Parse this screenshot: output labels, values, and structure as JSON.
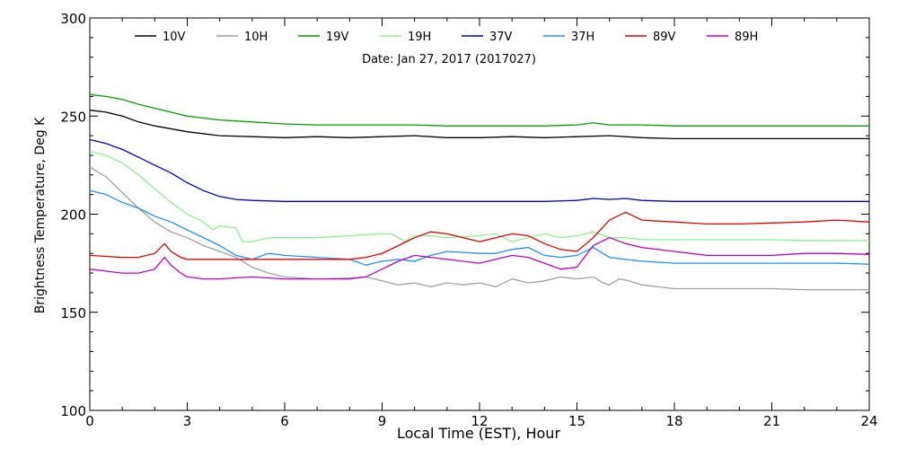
{
  "chart_data": {
    "type": "line",
    "title": "",
    "subtitle": "Date: Jan 27, 2017 (2017027)",
    "xlabel": "Local Time (EST), Hour",
    "ylabel": "Brightness Temperature, Deg K",
    "xlim": [
      0,
      24
    ],
    "ylim": [
      100,
      300
    ],
    "x_ticks": [
      "0",
      "3",
      "6",
      "9",
      "12",
      "15",
      "18",
      "21",
      "24"
    ],
    "y_ticks": [
      "100",
      "150",
      "200",
      "250",
      "300"
    ],
    "grid": false,
    "legend_position": "top",
    "series": [
      {
        "name": "10V",
        "color": "#000000",
        "points": [
          [
            0,
            253
          ],
          [
            0.5,
            252
          ],
          [
            1,
            250
          ],
          [
            1.5,
            247
          ],
          [
            2,
            245
          ],
          [
            3,
            242
          ],
          [
            4,
            240
          ],
          [
            5,
            239.5
          ],
          [
            6,
            239
          ],
          [
            7,
            239.5
          ],
          [
            8,
            239
          ],
          [
            9,
            239.5
          ],
          [
            10,
            240
          ],
          [
            11,
            239
          ],
          [
            12,
            239
          ],
          [
            13,
            239.5
          ],
          [
            14,
            239
          ],
          [
            15,
            239.5
          ],
          [
            16,
            240
          ],
          [
            17,
            239
          ],
          [
            18,
            238.5
          ],
          [
            19,
            238.5
          ],
          [
            20,
            238.5
          ],
          [
            21,
            238.5
          ],
          [
            22,
            238.5
          ],
          [
            23,
            238.5
          ],
          [
            24,
            238.5
          ]
        ]
      },
      {
        "name": "10H",
        "color": "#a0a0a0",
        "points": [
          [
            0,
            224
          ],
          [
            0.5,
            219
          ],
          [
            1,
            211
          ],
          [
            1.5,
            203
          ],
          [
            2,
            196
          ],
          [
            2.5,
            191
          ],
          [
            3,
            188
          ],
          [
            3.5,
            184
          ],
          [
            4,
            181
          ],
          [
            4.5,
            178
          ],
          [
            5,
            173
          ],
          [
            5.5,
            170
          ],
          [
            6,
            168
          ],
          [
            7,
            167
          ],
          [
            8,
            167.5
          ],
          [
            8.5,
            168
          ],
          [
            9,
            166
          ],
          [
            9.5,
            164
          ],
          [
            10,
            165
          ],
          [
            10.5,
            163
          ],
          [
            11,
            165
          ],
          [
            11.5,
            164
          ],
          [
            12,
            165
          ],
          [
            12.5,
            163
          ],
          [
            13,
            167
          ],
          [
            13.5,
            165
          ],
          [
            14,
            166
          ],
          [
            14.5,
            168
          ],
          [
            15,
            167
          ],
          [
            15.5,
            168
          ],
          [
            15.8,
            165
          ],
          [
            16,
            164
          ],
          [
            16.3,
            167
          ],
          [
            16.6,
            166
          ],
          [
            17,
            164
          ],
          [
            18,
            162
          ],
          [
            19,
            162
          ],
          [
            20,
            162
          ],
          [
            21,
            162
          ],
          [
            22,
            161.5
          ],
          [
            23,
            161.5
          ],
          [
            24,
            161.5
          ]
        ]
      },
      {
        "name": "19V",
        "color": "#00a000",
        "points": [
          [
            0,
            261
          ],
          [
            0.5,
            260
          ],
          [
            1,
            258.5
          ],
          [
            1.5,
            256
          ],
          [
            2,
            254
          ],
          [
            3,
            250
          ],
          [
            4,
            248
          ],
          [
            5,
            247
          ],
          [
            6,
            246
          ],
          [
            7,
            245.5
          ],
          [
            8,
            245.5
          ],
          [
            9,
            245.5
          ],
          [
            10,
            245.5
          ],
          [
            11,
            245
          ],
          [
            12,
            245
          ],
          [
            13,
            245
          ],
          [
            14,
            245
          ],
          [
            15,
            245.5
          ],
          [
            15.5,
            246.5
          ],
          [
            16,
            245.5
          ],
          [
            17,
            245.5
          ],
          [
            18,
            245
          ],
          [
            19,
            245
          ],
          [
            20,
            245
          ],
          [
            21,
            245
          ],
          [
            22,
            245
          ],
          [
            23,
            245
          ],
          [
            24,
            245
          ]
        ]
      },
      {
        "name": "19H",
        "color": "#90ee90",
        "points": [
          [
            0,
            232
          ],
          [
            0.5,
            230
          ],
          [
            1,
            226
          ],
          [
            1.5,
            220
          ],
          [
            2,
            213
          ],
          [
            2.5,
            206
          ],
          [
            3,
            200
          ],
          [
            3.5,
            196
          ],
          [
            3.8,
            192
          ],
          [
            4,
            194
          ],
          [
            4.5,
            193
          ],
          [
            4.7,
            186
          ],
          [
            5,
            186
          ],
          [
            5.5,
            188
          ],
          [
            6,
            188
          ],
          [
            7,
            188
          ],
          [
            8,
            189
          ],
          [
            9,
            190
          ],
          [
            9.3,
            190
          ],
          [
            9.7,
            186
          ],
          [
            10,
            189
          ],
          [
            10.5,
            189
          ],
          [
            11,
            188
          ],
          [
            12,
            189
          ],
          [
            12.5,
            190
          ],
          [
            13,
            186
          ],
          [
            13.5,
            188
          ],
          [
            14,
            190
          ],
          [
            14.5,
            188
          ],
          [
            15,
            189
          ],
          [
            15.5,
            191
          ],
          [
            16,
            188
          ],
          [
            16.5,
            188
          ],
          [
            17,
            187
          ],
          [
            18,
            187
          ],
          [
            19,
            187
          ],
          [
            20,
            187
          ],
          [
            21,
            187
          ],
          [
            22,
            186.5
          ],
          [
            23,
            186.5
          ],
          [
            24,
            186.5
          ]
        ]
      },
      {
        "name": "37V",
        "color": "#0000c0",
        "points": [
          [
            0,
            238
          ],
          [
            0.5,
            236
          ],
          [
            1,
            233
          ],
          [
            1.5,
            229
          ],
          [
            2,
            225
          ],
          [
            2.5,
            221
          ],
          [
            3,
            216
          ],
          [
            3.5,
            212
          ],
          [
            4,
            209
          ],
          [
            4.5,
            207.5
          ],
          [
            5,
            207
          ],
          [
            6,
            206.5
          ],
          [
            7,
            206.5
          ],
          [
            8,
            206.5
          ],
          [
            9,
            206.5
          ],
          [
            10,
            206.5
          ],
          [
            11,
            206.5
          ],
          [
            12,
            206.5
          ],
          [
            13,
            206.5
          ],
          [
            14,
            206.5
          ],
          [
            15,
            207
          ],
          [
            15.5,
            208
          ],
          [
            16,
            207.5
          ],
          [
            16.5,
            208
          ],
          [
            17,
            207
          ],
          [
            18,
            206.5
          ],
          [
            19,
            206.5
          ],
          [
            20,
            206.5
          ],
          [
            21,
            206.5
          ],
          [
            22,
            206.5
          ],
          [
            23,
            206.5
          ],
          [
            24,
            206.5
          ]
        ]
      },
      {
        "name": "37H",
        "color": "#1e90ff",
        "points": [
          [
            0,
            212
          ],
          [
            0.5,
            210
          ],
          [
            1,
            206
          ],
          [
            1.5,
            203
          ],
          [
            2,
            199
          ],
          [
            2.5,
            196
          ],
          [
            3,
            192
          ],
          [
            3.5,
            188
          ],
          [
            4,
            184
          ],
          [
            4.5,
            179
          ],
          [
            5,
            177
          ],
          [
            5.5,
            180
          ],
          [
            6,
            179
          ],
          [
            7,
            178
          ],
          [
            8,
            177
          ],
          [
            8.5,
            174
          ],
          [
            9,
            176
          ],
          [
            9.5,
            177
          ],
          [
            10,
            176
          ],
          [
            10.5,
            179
          ],
          [
            11,
            181
          ],
          [
            12,
            180
          ],
          [
            12.5,
            180
          ],
          [
            13,
            182
          ],
          [
            13.5,
            183
          ],
          [
            14,
            179
          ],
          [
            14.5,
            178
          ],
          [
            15,
            179
          ],
          [
            15.5,
            183
          ],
          [
            16,
            178
          ],
          [
            16.5,
            177
          ],
          [
            17,
            176
          ],
          [
            18,
            175
          ],
          [
            19,
            175
          ],
          [
            20,
            175
          ],
          [
            21,
            175
          ],
          [
            22,
            175
          ],
          [
            23,
            175
          ],
          [
            24,
            174.5
          ]
        ]
      },
      {
        "name": "89V",
        "color": "#e00000",
        "points": [
          [
            0,
            179
          ],
          [
            0.5,
            178.5
          ],
          [
            1,
            178
          ],
          [
            1.5,
            178
          ],
          [
            2,
            180
          ],
          [
            2.3,
            185
          ],
          [
            2.5,
            181
          ],
          [
            2.8,
            178
          ],
          [
            3,
            177
          ],
          [
            4,
            177
          ],
          [
            5,
            177
          ],
          [
            6,
            177
          ],
          [
            7,
            177
          ],
          [
            8,
            177
          ],
          [
            8.5,
            178
          ],
          [
            9,
            180
          ],
          [
            9.5,
            184
          ],
          [
            10,
            188
          ],
          [
            10.5,
            191
          ],
          [
            11,
            190
          ],
          [
            11.5,
            188
          ],
          [
            12,
            186
          ],
          [
            12.5,
            188
          ],
          [
            13,
            190
          ],
          [
            13.5,
            189
          ],
          [
            14,
            185
          ],
          [
            14.5,
            182
          ],
          [
            15,
            181
          ],
          [
            15.5,
            188
          ],
          [
            16,
            197
          ],
          [
            16.5,
            201
          ],
          [
            17,
            197
          ],
          [
            18,
            196
          ],
          [
            19,
            195
          ],
          [
            20,
            195
          ],
          [
            21,
            195.5
          ],
          [
            22,
            196
          ],
          [
            23,
            197
          ],
          [
            24,
            196
          ]
        ]
      },
      {
        "name": "89H",
        "color": "#c000c0",
        "points": [
          [
            0,
            172
          ],
          [
            0.5,
            171
          ],
          [
            1,
            170
          ],
          [
            1.5,
            170
          ],
          [
            2,
            172
          ],
          [
            2.3,
            178
          ],
          [
            2.5,
            174
          ],
          [
            2.8,
            170
          ],
          [
            3,
            168
          ],
          [
            3.5,
            167
          ],
          [
            4,
            167
          ],
          [
            5,
            168
          ],
          [
            6,
            167
          ],
          [
            7,
            167
          ],
          [
            8,
            167
          ],
          [
            8.5,
            168
          ],
          [
            9,
            172
          ],
          [
            9.5,
            176
          ],
          [
            10,
            179
          ],
          [
            10.5,
            178
          ],
          [
            11,
            177
          ],
          [
            12,
            175
          ],
          [
            12.5,
            177
          ],
          [
            13,
            179
          ],
          [
            13.5,
            178
          ],
          [
            14,
            175
          ],
          [
            14.5,
            172
          ],
          [
            15,
            173
          ],
          [
            15.5,
            184
          ],
          [
            16,
            188
          ],
          [
            16.5,
            185
          ],
          [
            17,
            183
          ],
          [
            18,
            181
          ],
          [
            19,
            179
          ],
          [
            20,
            179
          ],
          [
            21,
            179
          ],
          [
            22,
            180
          ],
          [
            23,
            180
          ],
          [
            24,
            179.5
          ]
        ]
      }
    ]
  }
}
